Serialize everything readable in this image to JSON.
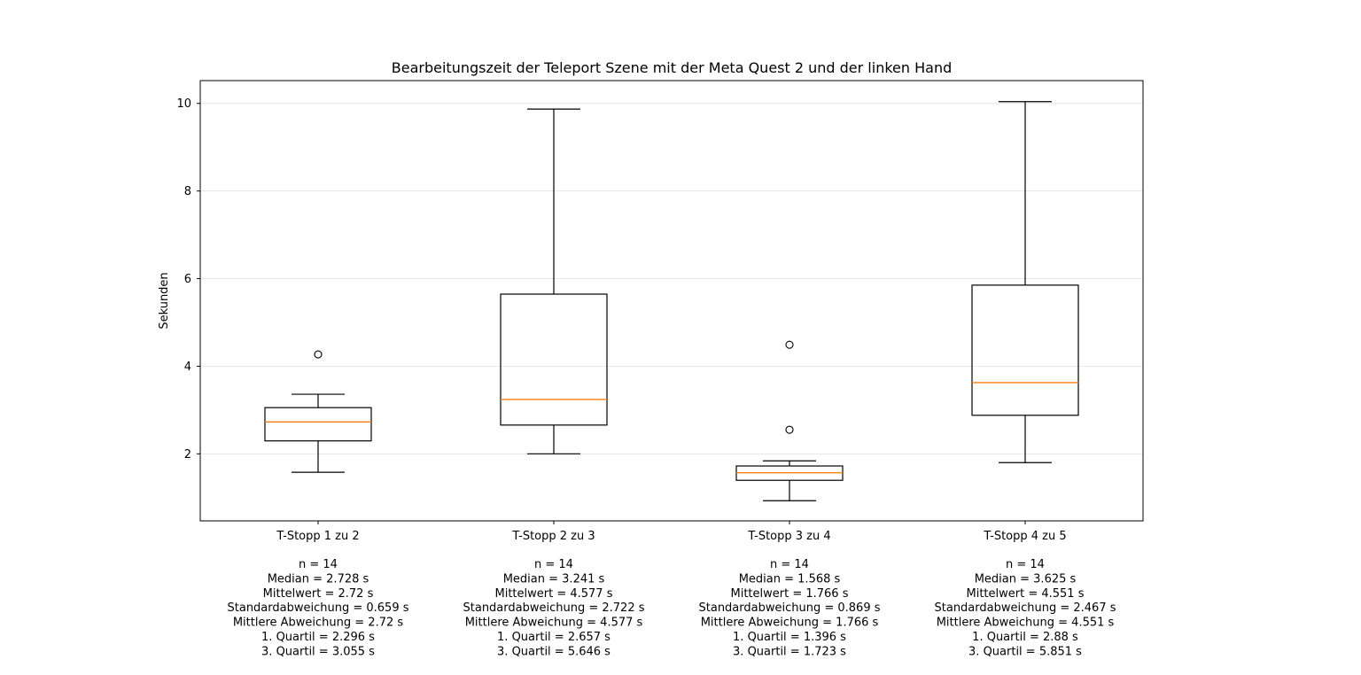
{
  "chart_data": {
    "type": "box",
    "title": "Bearbeitungszeit der Teleport Szene mit der Meta Quest 2 und der linken Hand",
    "xlabel": "",
    "ylabel": "Sekunden",
    "ylim": [
      0.47,
      10.52
    ],
    "yticks": [
      2,
      4,
      6,
      8,
      10
    ],
    "grid": "horizontal",
    "colors": {
      "box": "#000000",
      "median": "#ff7f0e",
      "grid": "#e6e6e6"
    },
    "categories": [
      "T-Stopp 1 zu 2",
      "T-Stopp 2 zu 3",
      "T-Stopp 3 zu 4",
      "T-Stopp 4 zu 5"
    ],
    "boxes": [
      {
        "whisker_low": 1.58,
        "q1": 2.296,
        "median": 2.728,
        "q3": 3.055,
        "whisker_high": 3.36,
        "outliers": [
          4.27
        ]
      },
      {
        "whisker_low": 2.0,
        "q1": 2.657,
        "median": 3.241,
        "q3": 5.646,
        "whisker_high": 9.87,
        "outliers": []
      },
      {
        "whisker_low": 0.93,
        "q1": 1.396,
        "median": 1.568,
        "q3": 1.723,
        "whisker_high": 1.84,
        "outliers": [
          2.55,
          4.49
        ]
      },
      {
        "whisker_low": 1.8,
        "q1": 2.88,
        "median": 3.625,
        "q3": 5.851,
        "whisker_high": 10.04,
        "outliers": []
      }
    ],
    "stats_text": [
      [
        "n = 14",
        "Median = 2.728 s",
        "Mittelwert = 2.72 s",
        "Standardabweichung = 0.659 s",
        "Mittlere Abweichung = 2.72 s",
        "1. Quartil = 2.296 s",
        "3. Quartil = 3.055 s"
      ],
      [
        "n = 14",
        "Median = 3.241 s",
        "Mittelwert = 4.577 s",
        "Standardabweichung = 2.722 s",
        "Mittlere Abweichung = 4.577 s",
        "1. Quartil = 2.657 s",
        "3. Quartil = 5.646 s"
      ],
      [
        "n = 14",
        "Median = 1.568 s",
        "Mittelwert = 1.766 s",
        "Standardabweichung = 0.869 s",
        "Mittlere Abweichung = 1.766 s",
        "1. Quartil = 1.396 s",
        "3. Quartil = 1.723 s"
      ],
      [
        "n = 14",
        "Median = 3.625 s",
        "Mittelwert = 4.551 s",
        "Standardabweichung = 2.467 s",
        "Mittlere Abweichung = 4.551 s",
        "1. Quartil = 2.88 s",
        "3. Quartil = 5.851 s"
      ]
    ]
  }
}
